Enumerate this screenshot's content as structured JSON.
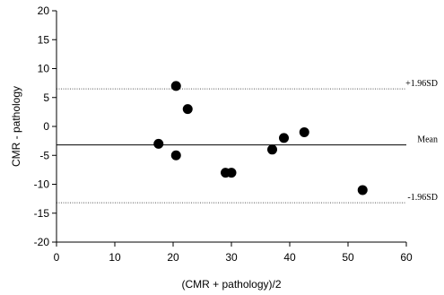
{
  "chart_data": {
    "type": "scatter",
    "title": "",
    "xlabel": "(CMR + pathology)/2",
    "ylabel": "CMR - pathology",
    "xlim": [
      0,
      60
    ],
    "ylim": [
      -20,
      20
    ],
    "xticks": [
      0,
      10,
      20,
      30,
      40,
      50,
      60
    ],
    "yticks": [
      -20,
      -15,
      -10,
      -5,
      0,
      5,
      10,
      15,
      20
    ],
    "grid": false,
    "legend": "none",
    "point_color": "#000000",
    "series": [
      {
        "points": [
          {
            "x": 17.5,
            "y": -3
          },
          {
            "x": 20.5,
            "y": 7
          },
          {
            "x": 20.5,
            "y": -5
          },
          {
            "x": 22.5,
            "y": 3
          },
          {
            "x": 29.0,
            "y": -8
          },
          {
            "x": 30.0,
            "y": -8
          },
          {
            "x": 37.0,
            "y": -4
          },
          {
            "x": 39.0,
            "y": -2
          },
          {
            "x": 42.5,
            "y": -1
          },
          {
            "x": 52.5,
            "y": -11
          }
        ]
      }
    ],
    "reference_lines": [
      {
        "label": "+1.96SD",
        "y": 6.5,
        "style": "dotted"
      },
      {
        "label": "Mean",
        "y": -3.2,
        "style": "solid"
      },
      {
        "label": "-1.96SD",
        "y": -13.2,
        "style": "dotted"
      }
    ]
  }
}
